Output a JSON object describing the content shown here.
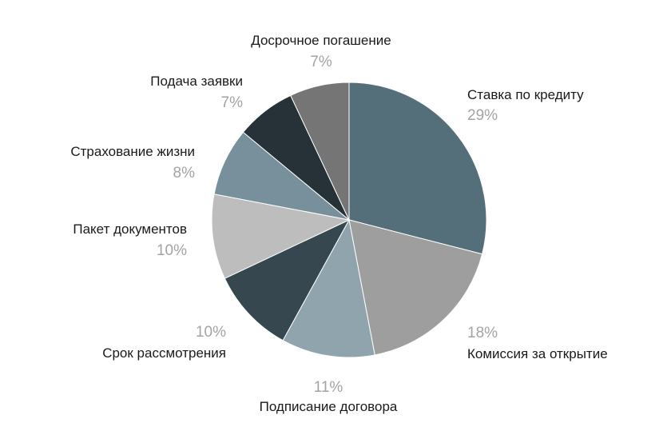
{
  "chart_data": {
    "type": "pie",
    "title": "",
    "start_angle_deg": 0,
    "direction": "clockwise",
    "slices": [
      {
        "label": "Ставка по кредиту",
        "value": 29,
        "value_label": "29%",
        "color": "#546e7a"
      },
      {
        "label": "Комиссия за открытие",
        "value": 18,
        "value_label": "18%",
        "color": "#9e9e9e"
      },
      {
        "label": "Подписание договора",
        "value": 11,
        "value_label": "11%",
        "color": "#90a4ae"
      },
      {
        "label": "Срок рассмотрения",
        "value": 10,
        "value_label": "10%",
        "color": "#37474f"
      },
      {
        "label": "Пакет документов",
        "value": 10,
        "value_label": "10%",
        "color": "#bdbdbd"
      },
      {
        "label": "Страхование жизни",
        "value": 8,
        "value_label": "8%",
        "color": "#78909c"
      },
      {
        "label": "Подача заявки",
        "value": 7,
        "value_label": "7%",
        "color": "#263238"
      },
      {
        "label": "Досрочное погашение",
        "value": 7,
        "value_label": "7%",
        "color": "#757575"
      }
    ]
  }
}
